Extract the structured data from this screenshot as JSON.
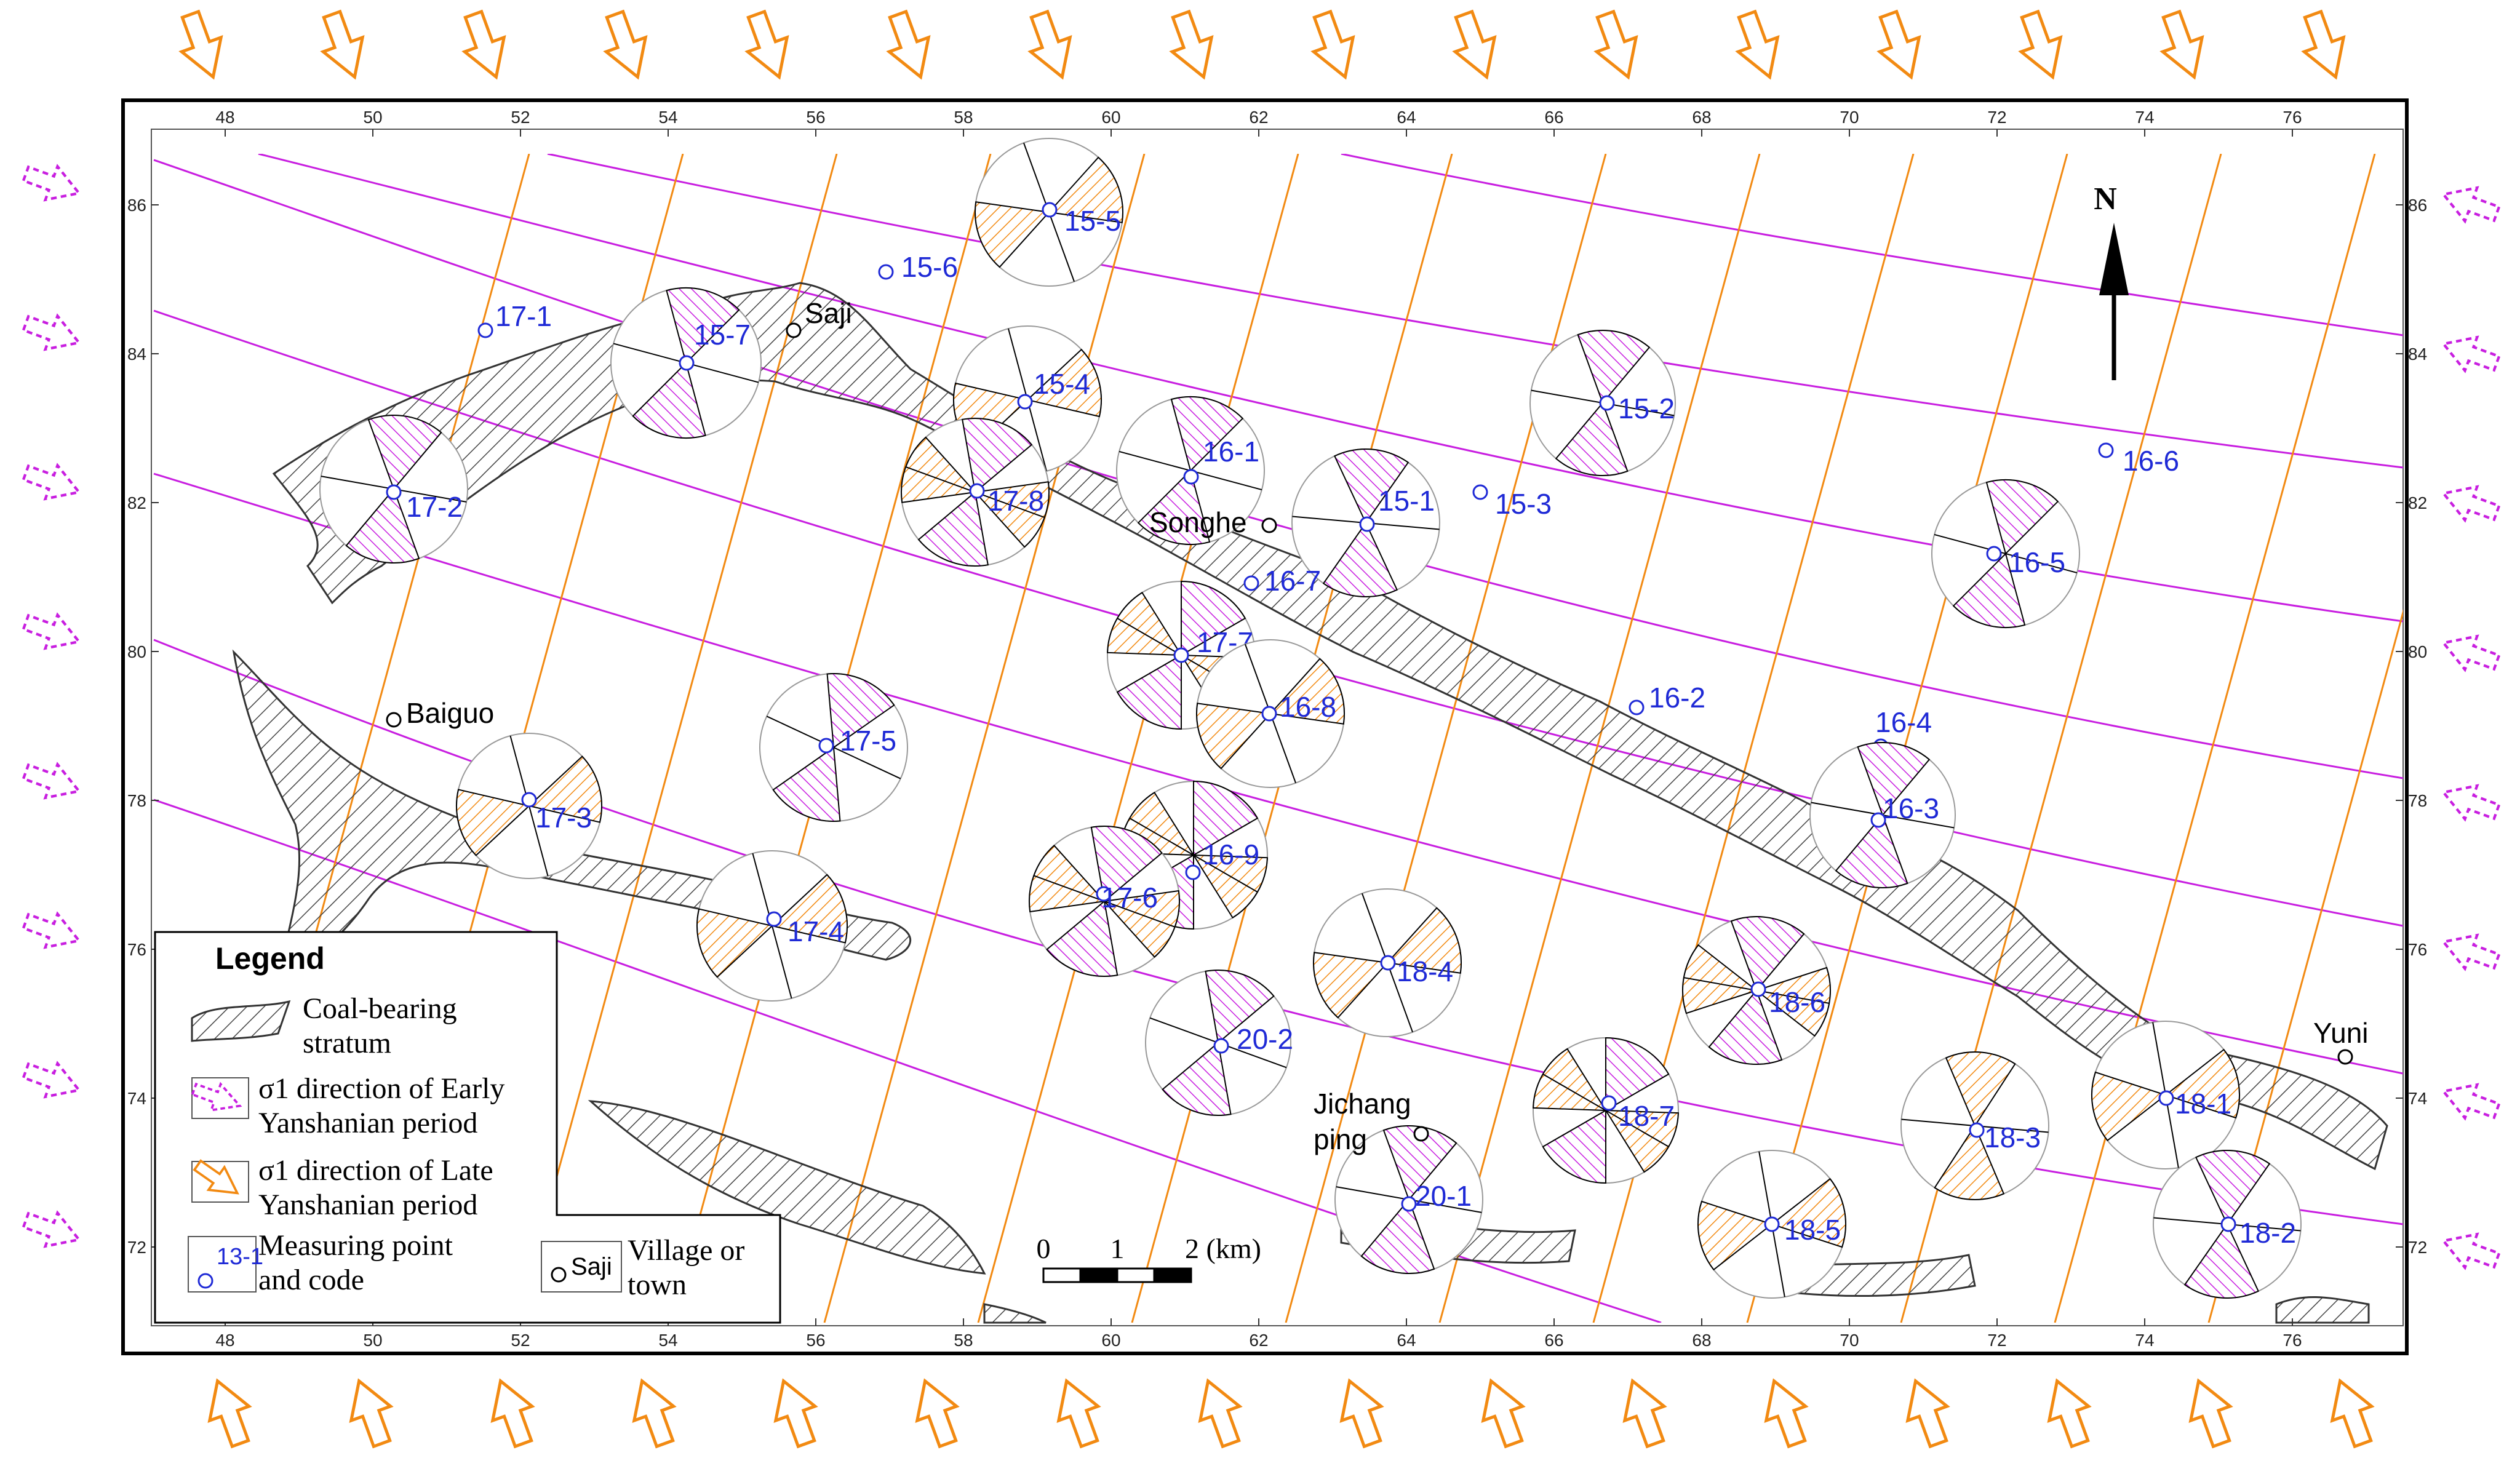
{
  "x_ticks": [
    "48",
    "50",
    "52",
    "54",
    "56",
    "58",
    "60",
    "62",
    "64",
    "66",
    "68",
    "70",
    "72",
    "74",
    "76"
  ],
  "y_ticks": [
    "86",
    "84",
    "82",
    "80",
    "78",
    "76",
    "74",
    "72"
  ],
  "north_label": "N",
  "places": [
    {
      "id": "saji",
      "name": "Saji"
    },
    {
      "id": "songhe",
      "name": "Songhe"
    },
    {
      "id": "baiguo",
      "name": "Baiguo"
    },
    {
      "id": "jichangping",
      "name": "Jichang\nping"
    },
    {
      "id": "yuni",
      "name": "Yuni"
    }
  ],
  "stations": [
    "15-5",
    "15-6",
    "15-7",
    "17-1",
    "15-4",
    "16-1",
    "17-2",
    "17-8",
    "15-2",
    "16-6",
    "15-1",
    "15-3",
    "16-7",
    "16-5",
    "17-7",
    "16-8",
    "16-2",
    "16-4",
    "17-5",
    "16-3",
    "17-3",
    "16-9",
    "17-6",
    "17-4",
    "18-4",
    "18-6",
    "20-2",
    "18-7",
    "18-3",
    "18-1",
    "20-1",
    "18-5",
    "18-2"
  ],
  "legend": {
    "title": "Legend",
    "coal_label": "Coal-bearing\nstratum",
    "early_label": "σ1 direction of Early\nYanshanian period",
    "late_label": "σ1 direction of Late\nYanshanian period",
    "point_label": "Measuring point\nand code",
    "point_code": "13-1",
    "village_label": "Village or\ntown",
    "village_sample": "Saji"
  },
  "scale_bar": {
    "ticks": [
      "0",
      "1",
      "2 (km)"
    ]
  },
  "colors": {
    "early": "#c81ee0",
    "late": "#f28a12",
    "coal": "#333333",
    "station": "#1f2ad6"
  }
}
